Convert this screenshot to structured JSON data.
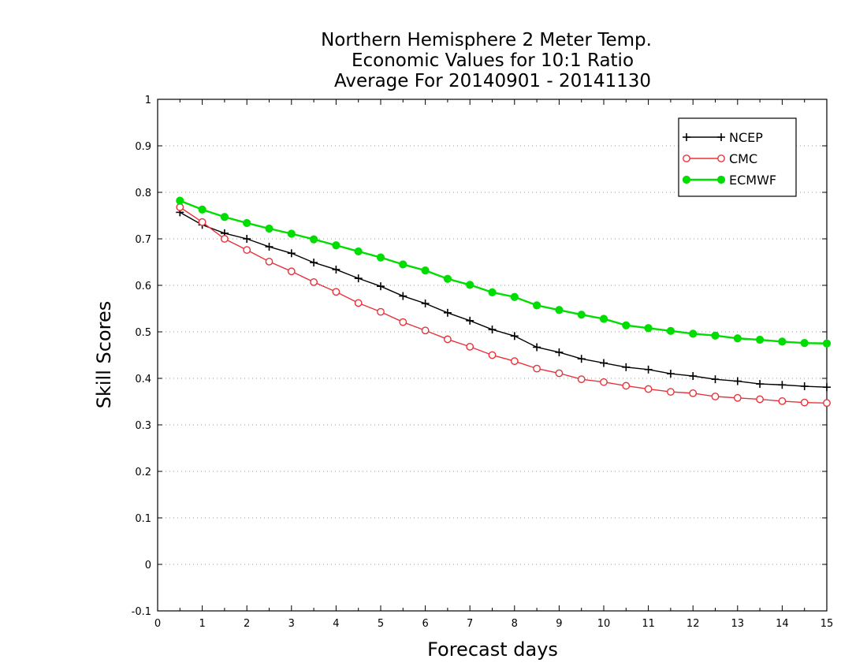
{
  "chart_data": {
    "type": "line",
    "title_lines": [
      "Northern Hemisphere 2 Meter Temp.",
      "Economic Values for 10:1 Ratio",
      "Average For 20140901 - 20141130"
    ],
    "xlabel": "Forecast days",
    "ylabel": "Skill Scores",
    "xlim": [
      0,
      15
    ],
    "ylim": [
      -0.1,
      1
    ],
    "xticks": [
      "0",
      "1",
      "2",
      "3",
      "4",
      "5",
      "6",
      "7",
      "8",
      "9",
      "10",
      "11",
      "12",
      "13",
      "14",
      "15"
    ],
    "yticks": [
      "1",
      "0.9",
      "0.8",
      "0.7",
      "0.6",
      "0.5",
      "0.4",
      "0.3",
      "0.2",
      "0.1",
      "0",
      "-0.1"
    ],
    "grid": "horizontal dotted",
    "legend_position": "top-right",
    "x": [
      0.5,
      1,
      1.5,
      2,
      2.5,
      3,
      3.5,
      4,
      4.5,
      5,
      5.5,
      6,
      6.5,
      7,
      7.5,
      8,
      8.5,
      9,
      9.5,
      10,
      10.5,
      11,
      11.5,
      12,
      12.5,
      13,
      13.5,
      14,
      14.5,
      15
    ],
    "series": [
      {
        "name": "NCEP",
        "color": "#000000",
        "marker": "plus",
        "values": [
          0.757,
          0.73,
          0.712,
          0.7,
          0.683,
          0.669,
          0.649,
          0.634,
          0.615,
          0.598,
          0.577,
          0.561,
          0.541,
          0.524,
          0.505,
          0.491,
          0.467,
          0.456,
          0.442,
          0.433,
          0.424,
          0.419,
          0.41,
          0.405,
          0.398,
          0.394,
          0.388,
          0.386,
          0.383,
          0.381
        ]
      },
      {
        "name": "CMC",
        "color": "#e8323a",
        "marker": "open-circle",
        "values": [
          0.768,
          0.736,
          0.7,
          0.676,
          0.651,
          0.63,
          0.607,
          0.586,
          0.562,
          0.543,
          0.521,
          0.503,
          0.484,
          0.468,
          0.45,
          0.437,
          0.421,
          0.411,
          0.398,
          0.392,
          0.384,
          0.377,
          0.371,
          0.368,
          0.361,
          0.358,
          0.355,
          0.351,
          0.348,
          0.347
        ]
      },
      {
        "name": "ECMWF",
        "color": "#00dd00",
        "marker": "filled-circle",
        "values": [
          0.782,
          0.763,
          0.747,
          0.734,
          0.722,
          0.711,
          0.699,
          0.686,
          0.673,
          0.66,
          0.645,
          0.632,
          0.614,
          0.601,
          0.585,
          0.575,
          0.557,
          0.547,
          0.537,
          0.528,
          0.514,
          0.508,
          0.502,
          0.496,
          0.492,
          0.486,
          0.483,
          0.479,
          0.476,
          0.475
        ]
      }
    ]
  }
}
